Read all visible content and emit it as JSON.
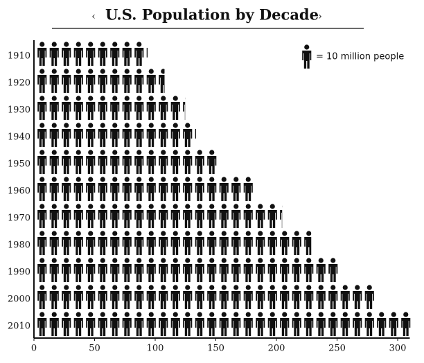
{
  "chart_data": {
    "type": "pictogram-bar",
    "title": "U.S. Population by Decade",
    "categories": [
      "1910",
      "1920",
      "1930",
      "1940",
      "1950",
      "1960",
      "1970",
      "1980",
      "1990",
      "2000",
      "2010"
    ],
    "values": [
      92,
      106,
      123,
      132,
      151,
      179,
      203,
      227,
      249,
      281,
      309
    ],
    "color": "#111111",
    "xlim": [
      0,
      310
    ],
    "xticks": [
      0,
      50,
      100,
      150,
      200,
      250,
      300
    ],
    "legend": {
      "value": 10,
      "label": "= 10 million people"
    }
  }
}
